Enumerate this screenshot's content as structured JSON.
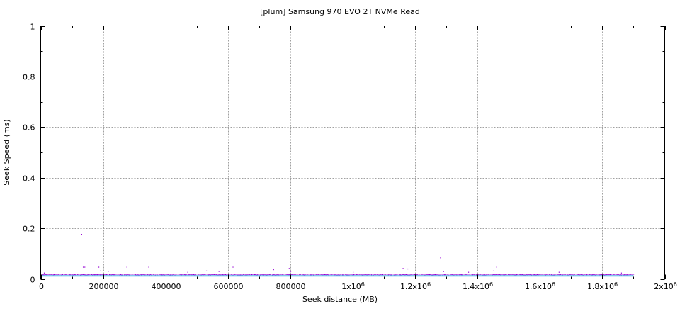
{
  "chart_data": {
    "type": "scatter",
    "title": "[plum] Samsung 970 EVO 2T NVMe Read",
    "xlabel": "Seek distance (MB)",
    "ylabel": "Seek Speed (ms)",
    "xlim": [
      0,
      2000000
    ],
    "ylim": [
      0,
      1
    ],
    "grid": true,
    "x_ticks": [
      {
        "v": 0,
        "base": "0",
        "exp": ""
      },
      {
        "v": 200000,
        "base": "200000",
        "exp": ""
      },
      {
        "v": 400000,
        "base": "400000",
        "exp": ""
      },
      {
        "v": 600000,
        "base": "600000",
        "exp": ""
      },
      {
        "v": 800000,
        "base": "800000",
        "exp": ""
      },
      {
        "v": 1000000,
        "base": "1x10",
        "exp": "6"
      },
      {
        "v": 1200000,
        "base": "1.2x10",
        "exp": "6"
      },
      {
        "v": 1400000,
        "base": "1.4x10",
        "exp": "6"
      },
      {
        "v": 1600000,
        "base": "1.6x10",
        "exp": "6"
      },
      {
        "v": 1800000,
        "base": "1.8x10",
        "exp": "6"
      },
      {
        "v": 2000000,
        "base": "2x10",
        "exp": "6"
      }
    ],
    "y_ticks": [
      {
        "v": 0,
        "label": "0"
      },
      {
        "v": 0.2,
        "label": "0.2"
      },
      {
        "v": 0.4,
        "label": "0.4"
      },
      {
        "v": 0.6,
        "label": "0.6"
      },
      {
        "v": 0.8,
        "label": "0.8"
      },
      {
        "v": 1,
        "label": "1"
      }
    ],
    "series": [
      {
        "color": "#9400d3",
        "style": "points",
        "x_range": [
          0,
          1900000
        ],
        "baseline": 0.016,
        "outliers": [
          [
            10000,
            0.022
          ],
          [
            130000,
            0.175
          ],
          [
            135000,
            0.045
          ],
          [
            140000,
            0.045
          ],
          [
            185000,
            0.045
          ],
          [
            190000,
            0.03
          ],
          [
            215000,
            0.028
          ],
          [
            275000,
            0.045
          ],
          [
            345000,
            0.045
          ],
          [
            470000,
            0.025
          ],
          [
            530000,
            0.03
          ],
          [
            570000,
            0.028
          ],
          [
            615000,
            0.045
          ],
          [
            745000,
            0.035
          ],
          [
            795000,
            0.04
          ],
          [
            800000,
            0.028
          ],
          [
            1000000,
            0.025
          ],
          [
            1160000,
            0.04
          ],
          [
            1175000,
            0.038
          ],
          [
            1280000,
            0.082
          ],
          [
            1290000,
            0.028
          ],
          [
            1370000,
            0.025
          ],
          [
            1450000,
            0.03
          ],
          [
            1460000,
            0.045
          ],
          [
            1660000,
            0.025
          ],
          [
            1860000,
            0.022
          ]
        ]
      },
      {
        "color": "#56b4e9",
        "style": "line",
        "x": [
          0,
          1900000
        ],
        "y": [
          0.012,
          0.012
        ]
      }
    ]
  }
}
